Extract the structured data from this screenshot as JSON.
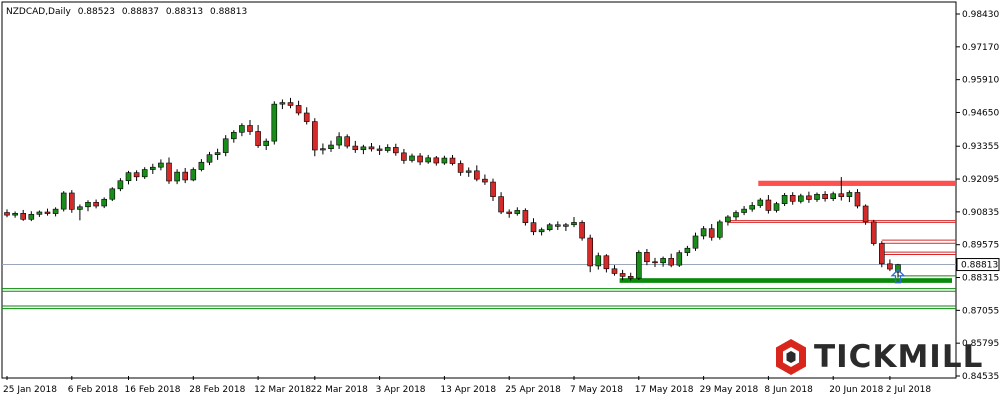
{
  "header": {
    "symbol": "NZDCAD,Daily",
    "open": "0.88523",
    "high": "0.88837",
    "low": "0.88313",
    "close": "0.88813"
  },
  "logo": {
    "text": "TICKMILL",
    "color": "#d9261c"
  },
  "colors": {
    "bull": "#1a8c1a",
    "bear": "#d42a2a",
    "resistance": "#ff5050",
    "support": "#0a8a0a",
    "price_line": "#9aa7b8",
    "arrow": "#2d6fd0"
  },
  "chart_data": {
    "type": "candlestick",
    "y_axis_ticks": [
      "0.98430",
      "0.97170",
      "0.95910",
      "0.94650",
      "0.93355",
      "0.92095",
      "0.90835",
      "0.89575",
      "0.88315",
      "0.87055",
      "0.85795",
      "0.84535"
    ],
    "x_axis_ticks": [
      "25 Jan 2018",
      "6 Feb 2018",
      "16 Feb 2018",
      "28 Feb 2018",
      "12 Mar 2018",
      "22 Mar 2018",
      "3 Apr 2018",
      "13 Apr 2018",
      "25 Apr 2018",
      "7 May 2018",
      "17 May 2018",
      "29 May 2018",
      "8 Jun 2018",
      "20 Jun 2018",
      "2 Jul 2018"
    ],
    "ylim": [
      0.84535,
      0.9843
    ],
    "current_price_label": "0.88813",
    "current_price": 0.88813,
    "candles": [
      [
        0.9081,
        0.9093,
        0.9063,
        0.9071
      ],
      [
        0.9071,
        0.9085,
        0.9061,
        0.9078
      ],
      [
        0.9078,
        0.9091,
        0.9049,
        0.9055
      ],
      [
        0.9055,
        0.9086,
        0.9048,
        0.9074
      ],
      [
        0.9074,
        0.9089,
        0.9064,
        0.9083
      ],
      [
        0.9083,
        0.9096,
        0.9069,
        0.9077
      ],
      [
        0.9077,
        0.9101,
        0.9066,
        0.9094
      ],
      [
        0.9094,
        0.9163,
        0.9085,
        0.9156
      ],
      [
        0.9156,
        0.9167,
        0.908,
        0.9093
      ],
      [
        0.9093,
        0.9112,
        0.9051,
        0.9103
      ],
      [
        0.9103,
        0.9128,
        0.9086,
        0.912
      ],
      [
        0.912,
        0.9131,
        0.9097,
        0.9106
      ],
      [
        0.9106,
        0.9139,
        0.9098,
        0.9132
      ],
      [
        0.9132,
        0.9178,
        0.9125,
        0.9172
      ],
      [
        0.9172,
        0.9213,
        0.9163,
        0.9203
      ],
      [
        0.9203,
        0.9241,
        0.9189,
        0.9234
      ],
      [
        0.9234,
        0.9243,
        0.9202,
        0.9218
      ],
      [
        0.9218,
        0.9255,
        0.921,
        0.9246
      ],
      [
        0.9246,
        0.9268,
        0.9229,
        0.9255
      ],
      [
        0.9255,
        0.9285,
        0.9243,
        0.9271
      ],
      [
        0.9271,
        0.9292,
        0.9191,
        0.9202
      ],
      [
        0.9202,
        0.9247,
        0.919,
        0.9236
      ],
      [
        0.9236,
        0.9252,
        0.9194,
        0.9206
      ],
      [
        0.9206,
        0.9254,
        0.9201,
        0.9246
      ],
      [
        0.9246,
        0.9286,
        0.9239,
        0.9274
      ],
      [
        0.9274,
        0.9314,
        0.9263,
        0.9303
      ],
      [
        0.9303,
        0.9326,
        0.9283,
        0.9311
      ],
      [
        0.9311,
        0.9378,
        0.9297,
        0.9364
      ],
      [
        0.9364,
        0.9397,
        0.9349,
        0.9389
      ],
      [
        0.9389,
        0.9424,
        0.9374,
        0.9415
      ],
      [
        0.9415,
        0.9436,
        0.9379,
        0.9392
      ],
      [
        0.9392,
        0.9417,
        0.9329,
        0.9338
      ],
      [
        0.9338,
        0.9365,
        0.9321,
        0.9355
      ],
      [
        0.9355,
        0.9508,
        0.9342,
        0.9497
      ],
      [
        0.9497,
        0.9515,
        0.9478,
        0.9503
      ],
      [
        0.9503,
        0.9521,
        0.9481,
        0.9492
      ],
      [
        0.9492,
        0.951,
        0.9454,
        0.9463
      ],
      [
        0.9463,
        0.9485,
        0.9419,
        0.943
      ],
      [
        0.943,
        0.9443,
        0.9297,
        0.9321
      ],
      [
        0.9321,
        0.9346,
        0.9304,
        0.9326
      ],
      [
        0.9326,
        0.9357,
        0.9314,
        0.934
      ],
      [
        0.934,
        0.9389,
        0.9325,
        0.9372
      ],
      [
        0.9372,
        0.9381,
        0.9327,
        0.9336
      ],
      [
        0.9336,
        0.9356,
        0.931,
        0.9322
      ],
      [
        0.9322,
        0.9341,
        0.9305,
        0.9333
      ],
      [
        0.9333,
        0.9348,
        0.9315,
        0.9325
      ],
      [
        0.9325,
        0.9339,
        0.9302,
        0.9319
      ],
      [
        0.9319,
        0.9343,
        0.9311,
        0.9331
      ],
      [
        0.9331,
        0.9345,
        0.9299,
        0.931
      ],
      [
        0.931,
        0.9325,
        0.9268,
        0.9281
      ],
      [
        0.9281,
        0.9307,
        0.9273,
        0.9298
      ],
      [
        0.9298,
        0.9309,
        0.9263,
        0.9275
      ],
      [
        0.9275,
        0.9302,
        0.9268,
        0.9291
      ],
      [
        0.9291,
        0.9298,
        0.9261,
        0.9271
      ],
      [
        0.9271,
        0.9299,
        0.9264,
        0.929
      ],
      [
        0.929,
        0.9302,
        0.9262,
        0.9269
      ],
      [
        0.9269,
        0.9281,
        0.9222,
        0.9235
      ],
      [
        0.9235,
        0.9254,
        0.9218,
        0.9241
      ],
      [
        0.9241,
        0.9262,
        0.9201,
        0.9209
      ],
      [
        0.9209,
        0.9227,
        0.9187,
        0.9198
      ],
      [
        0.9198,
        0.9211,
        0.9125,
        0.9142
      ],
      [
        0.9142,
        0.9159,
        0.9075,
        0.9083
      ],
      [
        0.9083,
        0.9093,
        0.9061,
        0.9077
      ],
      [
        0.9077,
        0.9101,
        0.9069,
        0.9089
      ],
      [
        0.9089,
        0.9097,
        0.9031,
        0.9042
      ],
      [
        0.9042,
        0.9059,
        0.8994,
        0.9007
      ],
      [
        0.9007,
        0.9023,
        0.8993,
        0.9015
      ],
      [
        0.9015,
        0.9041,
        0.9009,
        0.9034
      ],
      [
        0.9034,
        0.9047,
        0.9014,
        0.9028
      ],
      [
        0.9028,
        0.9041,
        0.901,
        0.9034
      ],
      [
        0.9034,
        0.9064,
        0.9025,
        0.9043
      ],
      [
        0.9043,
        0.9051,
        0.8973,
        0.8983
      ],
      [
        0.8983,
        0.8996,
        0.8852,
        0.8876
      ],
      [
        0.8876,
        0.8927,
        0.8862,
        0.8915
      ],
      [
        0.8915,
        0.8921,
        0.8851,
        0.8865
      ],
      [
        0.8865,
        0.8879,
        0.8839,
        0.8847
      ],
      [
        0.8847,
        0.8861,
        0.8821,
        0.8836
      ],
      [
        0.8836,
        0.885,
        0.882,
        0.8829
      ],
      [
        0.8829,
        0.8936,
        0.8822,
        0.8928
      ],
      [
        0.8928,
        0.8941,
        0.8879,
        0.8892
      ],
      [
        0.8892,
        0.8907,
        0.8872,
        0.8888
      ],
      [
        0.8888,
        0.8912,
        0.8873,
        0.8905
      ],
      [
        0.8905,
        0.8923,
        0.8871,
        0.8879
      ],
      [
        0.8879,
        0.8936,
        0.8872,
        0.8927
      ],
      [
        0.8927,
        0.8953,
        0.8914,
        0.8944
      ],
      [
        0.8944,
        0.9004,
        0.8934,
        0.8991
      ],
      [
        0.8991,
        0.9029,
        0.8978,
        0.9019
      ],
      [
        0.9019,
        0.9037,
        0.8973,
        0.8986
      ],
      [
        0.8986,
        0.9053,
        0.8977,
        0.9045
      ],
      [
        0.9045,
        0.9071,
        0.9031,
        0.9064
      ],
      [
        0.9064,
        0.9089,
        0.9052,
        0.9081
      ],
      [
        0.9081,
        0.9106,
        0.9071,
        0.9094
      ],
      [
        0.9094,
        0.9121,
        0.9084,
        0.9108
      ],
      [
        0.9108,
        0.9137,
        0.9099,
        0.9129
      ],
      [
        0.9129,
        0.9148,
        0.9077,
        0.9089
      ],
      [
        0.9089,
        0.9122,
        0.9081,
        0.9115
      ],
      [
        0.9115,
        0.9156,
        0.9106,
        0.9147
      ],
      [
        0.9147,
        0.9159,
        0.9111,
        0.9124
      ],
      [
        0.9124,
        0.9153,
        0.9116,
        0.9145
      ],
      [
        0.9145,
        0.9161,
        0.9118,
        0.9131
      ],
      [
        0.9131,
        0.9158,
        0.9122,
        0.9151
      ],
      [
        0.9151,
        0.9163,
        0.9123,
        0.9134
      ],
      [
        0.9134,
        0.9161,
        0.9125,
        0.9153
      ],
      [
        0.9153,
        0.9217,
        0.9127,
        0.9142
      ],
      [
        0.9142,
        0.9166,
        0.9121,
        0.9158
      ],
      [
        0.9158,
        0.9171,
        0.9097,
        0.9106
      ],
      [
        0.9106,
        0.9112,
        0.9034,
        0.9045
      ],
      [
        0.9045,
        0.9053,
        0.8954,
        0.8962
      ],
      [
        0.8962,
        0.8971,
        0.8871,
        0.8884
      ],
      [
        0.8884,
        0.8901,
        0.8856,
        0.8864
      ],
      [
        0.8852,
        0.8884,
        0.8831,
        0.8881
      ]
    ],
    "levels": {
      "resistance_zone": [
        0.9183,
        0.9203
      ],
      "support_zone": [
        0.8811,
        0.8829
      ],
      "support_lines": [
        0.8789,
        0.8779,
        0.8722,
        0.8712
      ],
      "resistance_lines": [
        0.905,
        0.9043,
        0.8975,
        0.8963,
        0.8929,
        0.892
      ],
      "arrow_price": 0.8846
    }
  }
}
